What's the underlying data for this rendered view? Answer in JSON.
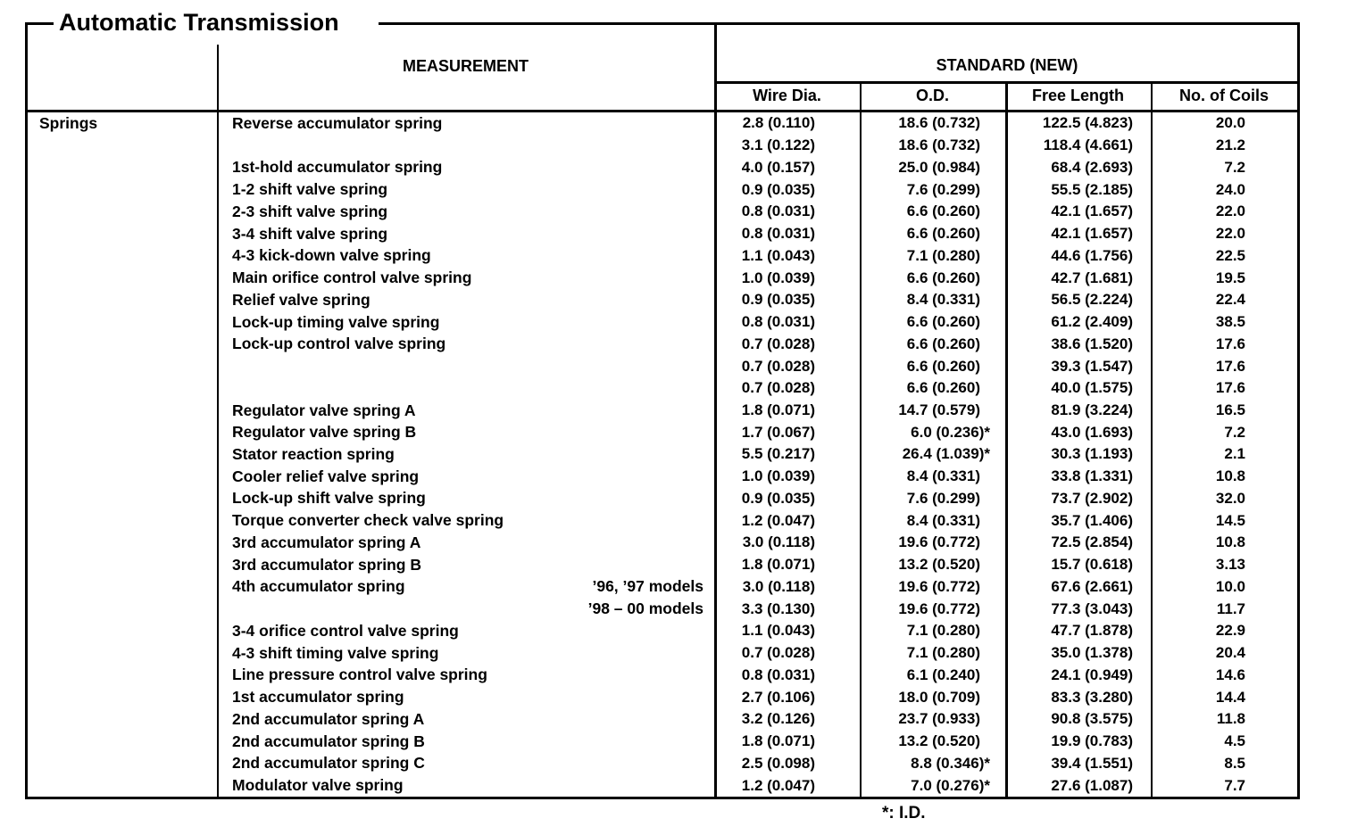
{
  "page": {
    "title": "Automatic Transmission",
    "footnote": "*: I.D."
  },
  "table": {
    "row_group_label": "Springs",
    "header": {
      "measurement": "MEASUREMENT",
      "standard": "STANDARD (NEW)",
      "columns": [
        "Wire Dia.",
        "O.D.",
        "Free Length",
        "No. of Coils"
      ]
    },
    "rows": [
      {
        "label": "Reverse accumulator spring",
        "note": "",
        "wire_dia": "2.8 (0.110)",
        "od": "18.6 (0.732)",
        "free_length": "122.5 (4.823)",
        "no_of_coils": "20.0"
      },
      {
        "label": "",
        "note": "",
        "wire_dia": "3.1 (0.122)",
        "od": "18.6 (0.732)",
        "free_length": "118.4 (4.661)",
        "no_of_coils": "21.2"
      },
      {
        "label": "1st-hold accumulator spring",
        "note": "",
        "wire_dia": "4.0 (0.157)",
        "od": "25.0 (0.984)",
        "free_length": "68.4 (2.693)",
        "no_of_coils": "7.2"
      },
      {
        "label": "1-2 shift valve spring",
        "note": "",
        "wire_dia": "0.9 (0.035)",
        "od": "7.6 (0.299)",
        "free_length": "55.5 (2.185)",
        "no_of_coils": "24.0"
      },
      {
        "label": "2-3 shift valve spring",
        "note": "",
        "wire_dia": "0.8 (0.031)",
        "od": "6.6 (0.260)",
        "free_length": "42.1 (1.657)",
        "no_of_coils": "22.0"
      },
      {
        "label": "3-4 shift valve spring",
        "note": "",
        "wire_dia": "0.8 (0.031)",
        "od": "6.6 (0.260)",
        "free_length": "42.1 (1.657)",
        "no_of_coils": "22.0"
      },
      {
        "label": "4-3 kick-down valve spring",
        "note": "",
        "wire_dia": "1.1 (0.043)",
        "od": "7.1 (0.280)",
        "free_length": "44.6 (1.756)",
        "no_of_coils": "22.5"
      },
      {
        "label": "Main orifice control valve spring",
        "note": "",
        "wire_dia": "1.0 (0.039)",
        "od": "6.6 (0.260)",
        "free_length": "42.7 (1.681)",
        "no_of_coils": "19.5"
      },
      {
        "label": "Relief valve spring",
        "note": "",
        "wire_dia": "0.9 (0.035)",
        "od": "8.4 (0.331)",
        "free_length": "56.5 (2.224)",
        "no_of_coils": "22.4"
      },
      {
        "label": "Lock-up timing valve spring",
        "note": "",
        "wire_dia": "0.8 (0.031)",
        "od": "6.6 (0.260)",
        "free_length": "61.2 (2.409)",
        "no_of_coils": "38.5"
      },
      {
        "label": "Lock-up control valve spring",
        "note": "",
        "wire_dia": "0.7 (0.028)",
        "od": "6.6 (0.260)",
        "free_length": "38.6 (1.520)",
        "no_of_coils": "17.6"
      },
      {
        "label": "",
        "note": "",
        "wire_dia": "0.7 (0.028)",
        "od": "6.6 (0.260)",
        "free_length": "39.3 (1.547)",
        "no_of_coils": "17.6"
      },
      {
        "label": "",
        "note": "",
        "wire_dia": "0.7 (0.028)",
        "od": "6.6 (0.260)",
        "free_length": "40.0 (1.575)",
        "no_of_coils": "17.6"
      },
      {
        "label": "Regulator valve spring A",
        "note": "",
        "wire_dia": "1.8 (0.071)",
        "od": "14.7 (0.579)",
        "free_length": "81.9 (3.224)",
        "no_of_coils": "16.5"
      },
      {
        "label": "Regulator valve spring B",
        "note": "",
        "wire_dia": "1.7 (0.067)",
        "od": "6.0 (0.236)*",
        "free_length": "43.0 (1.693)",
        "no_of_coils": "7.2"
      },
      {
        "label": "Stator reaction spring",
        "note": "",
        "wire_dia": "5.5 (0.217)",
        "od": "26.4 (1.039)*",
        "free_length": "30.3 (1.193)",
        "no_of_coils": "2.1"
      },
      {
        "label": "Cooler relief valve spring",
        "note": "",
        "wire_dia": "1.0 (0.039)",
        "od": "8.4 (0.331)",
        "free_length": "33.8 (1.331)",
        "no_of_coils": "10.8"
      },
      {
        "label": "Lock-up shift valve spring",
        "note": "",
        "wire_dia": "0.9 (0.035)",
        "od": "7.6 (0.299)",
        "free_length": "73.7 (2.902)",
        "no_of_coils": "32.0"
      },
      {
        "label": "Torque converter check valve spring",
        "note": "",
        "wire_dia": "1.2 (0.047)",
        "od": "8.4 (0.331)",
        "free_length": "35.7 (1.406)",
        "no_of_coils": "14.5"
      },
      {
        "label": "3rd accumulator spring A",
        "note": "",
        "wire_dia": "3.0 (0.118)",
        "od": "19.6 (0.772)",
        "free_length": "72.5 (2.854)",
        "no_of_coils": "10.8"
      },
      {
        "label": "3rd accumulator spring B",
        "note": "",
        "wire_dia": "1.8 (0.071)",
        "od": "13.2 (0.520)",
        "free_length": "15.7 (0.618)",
        "no_of_coils": "3.13"
      },
      {
        "label": "4th accumulator spring",
        "note": "’96, ’97 models",
        "wire_dia": "3.0 (0.118)",
        "od": "19.6 (0.772)",
        "free_length": "67.6 (2.661)",
        "no_of_coils": "10.0"
      },
      {
        "label": "",
        "note": "’98 – 00 models",
        "wire_dia": "3.3 (0.130)",
        "od": "19.6 (0.772)",
        "free_length": "77.3 (3.043)",
        "no_of_coils": "11.7"
      },
      {
        "label": "3-4 orifice control valve spring",
        "note": "",
        "wire_dia": "1.1 (0.043)",
        "od": "7.1 (0.280)",
        "free_length": "47.7 (1.878)",
        "no_of_coils": "22.9"
      },
      {
        "label": "4-3 shift timing valve spring",
        "note": "",
        "wire_dia": "0.7 (0.028)",
        "od": "7.1 (0.280)",
        "free_length": "35.0 (1.378)",
        "no_of_coils": "20.4"
      },
      {
        "label": "Line pressure control valve spring",
        "note": "",
        "wire_dia": "0.8 (0.031)",
        "od": "6.1 (0.240)",
        "free_length": "24.1 (0.949)",
        "no_of_coils": "14.6"
      },
      {
        "label": "1st accumulator spring",
        "note": "",
        "wire_dia": "2.7 (0.106)",
        "od": "18.0 (0.709)",
        "free_length": "83.3 (3.280)",
        "no_of_coils": "14.4"
      },
      {
        "label": "2nd accumulator spring A",
        "note": "",
        "wire_dia": "3.2 (0.126)",
        "od": "23.7 (0.933)",
        "free_length": "90.8 (3.575)",
        "no_of_coils": "11.8"
      },
      {
        "label": "2nd accumulator spring B",
        "note": "",
        "wire_dia": "1.8 (0.071)",
        "od": "13.2 (0.520)",
        "free_length": "19.9 (0.783)",
        "no_of_coils": "4.5"
      },
      {
        "label": "2nd accumulator spring C",
        "note": "",
        "wire_dia": "2.5 (0.098)",
        "od": "8.8 (0.346)*",
        "free_length": "39.4 (1.551)",
        "no_of_coils": "8.5"
      },
      {
        "label": "Modulator valve spring",
        "note": "",
        "wire_dia": "1.2 (0.047)",
        "od": "7.0 (0.276)*",
        "free_length": "27.6 (1.087)",
        "no_of_coils": "7.7"
      }
    ]
  }
}
